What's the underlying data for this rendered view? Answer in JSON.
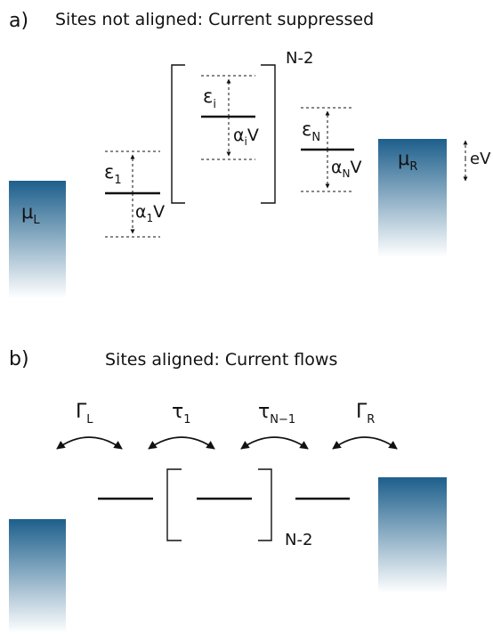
{
  "panel_a": {
    "label": "a)",
    "title": "Sites not aligned: Current suppressed",
    "mu_left": {
      "sym": "μ",
      "sub": "L"
    },
    "mu_right": {
      "sym": "μ",
      "sub": "R"
    },
    "eps_1": {
      "sym": "ε",
      "sub": "1"
    },
    "eps_i": {
      "sym": "ε",
      "sub": "i"
    },
    "eps_N": {
      "sym": "ε",
      "sub": "N"
    },
    "shift_1": {
      "sym": "α",
      "sub": "1",
      "tail": "V"
    },
    "shift_i": {
      "sym": "α",
      "sub": "i",
      "tail": "V"
    },
    "shift_N": {
      "sym": "α",
      "sub": "N",
      "tail": "V"
    },
    "bias": "eV",
    "repeat": "N-2"
  },
  "panel_b": {
    "label": "b)",
    "title": "Sites aligned: Current flows",
    "gamma_left": {
      "sym": "Γ",
      "sub": "L"
    },
    "tau_1": {
      "sym": "τ",
      "sub": "1"
    },
    "tau_N1": {
      "sym": "τ",
      "sub": "N−1"
    },
    "gamma_right": {
      "sym": "Γ",
      "sub": "R"
    },
    "repeat": "N-2"
  },
  "colors": {
    "lead_top": "#1d5f8c",
    "lead_bottom": "#ffffff"
  }
}
